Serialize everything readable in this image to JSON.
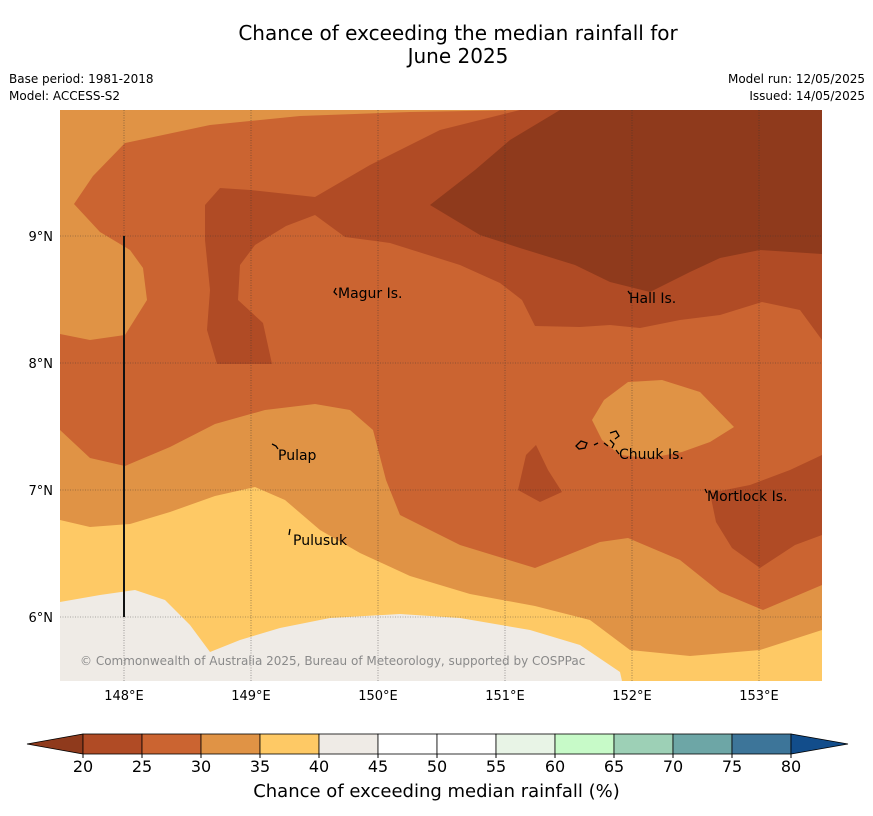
{
  "header": {
    "title_line1": "Chance of exceeding the median rainfall for",
    "title_line2": "June 2025",
    "base_period": "Base period: 1981-2018",
    "model": "Model: ACCESS-S2",
    "model_run": "Model run: 12/05/2025",
    "issued": "Issued: 14/05/2025"
  },
  "map": {
    "lat_labels": [
      "9°N",
      "8°N",
      "7°N",
      "6°N"
    ],
    "lon_labels": [
      "148°E",
      "149°E",
      "150°E",
      "151°E",
      "152°E",
      "153°E"
    ],
    "places": [
      "Magur Is.",
      "Hall Is.",
      "Pulap",
      "Chuuk Is.",
      "Mortlock Is.",
      "Pulusuk"
    ],
    "copyright": "© Commonwealth of Australia 2025, Bureau of Meteorology, supported by COSPPac"
  },
  "legend": {
    "title": "Chance of exceeding median rainfall (%)",
    "ticks": [
      "20",
      "25",
      "30",
      "35",
      "40",
      "45",
      "50",
      "55",
      "60",
      "65",
      "70",
      "75",
      "80"
    ],
    "colors": [
      "#8f3a1c",
      "#b04b25",
      "#cb6431",
      "#e09345",
      "#fec965",
      "#efebe6",
      "#ffffff",
      "#ffffff",
      "#e8f4e6",
      "#c7fac8",
      "#9dd0b6",
      "#6da6a6",
      "#3d7599",
      "#124d8b"
    ]
  }
}
